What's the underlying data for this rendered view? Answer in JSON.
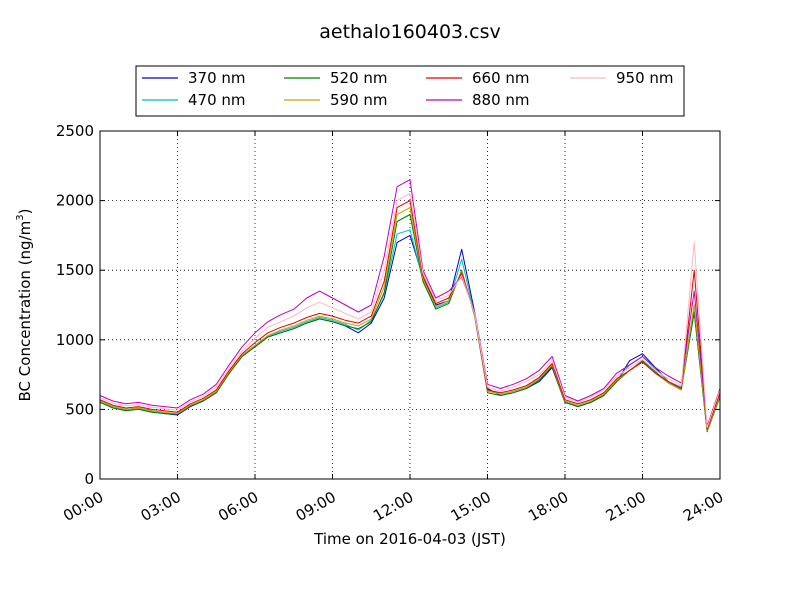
{
  "chart_data": {
    "type": "line",
    "title": "aethalo160403.csv",
    "xlabel": "Time on 2016-04-03 (JST)",
    "ylabel": "BC Concentration (ng/m",
    "ylabel_sup": "3",
    "ylabel_end": ")",
    "xlim": [
      "00:00",
      "24:00"
    ],
    "ylim": [
      0,
      2500
    ],
    "x_ticks": [
      "00:00",
      "03:00",
      "06:00",
      "09:00",
      "12:00",
      "15:00",
      "18:00",
      "21:00",
      "24:00"
    ],
    "y_ticks": [
      0,
      500,
      1000,
      1500,
      2000,
      2500
    ],
    "grid": true,
    "legend_position": "top",
    "x_hours": [
      0.0,
      0.5,
      1.0,
      1.5,
      2.0,
      2.5,
      3.0,
      3.5,
      4.0,
      4.5,
      5.0,
      5.5,
      6.0,
      6.5,
      7.0,
      7.5,
      8.0,
      8.5,
      9.0,
      9.5,
      10.0,
      10.5,
      11.0,
      11.5,
      12.0,
      12.5,
      13.0,
      13.5,
      14.0,
      14.5,
      15.0,
      15.5,
      16.0,
      16.5,
      17.0,
      17.5,
      18.0,
      18.5,
      19.0,
      19.5,
      20.0,
      20.5,
      21.0,
      21.5,
      22.0,
      22.5,
      23.0,
      23.5,
      24.0
    ],
    "series": [
      {
        "name": "370 nm",
        "color": "#0000cc",
        "values": [
          560,
          520,
          500,
          510,
          490,
          470,
          460,
          520,
          560,
          620,
          760,
          880,
          950,
          1020,
          1050,
          1080,
          1120,
          1150,
          1130,
          1100,
          1050,
          1120,
          1300,
          1700,
          1750,
          1450,
          1250,
          1280,
          1650,
          1200,
          650,
          600,
          620,
          650,
          700,
          800,
          550,
          520,
          550,
          600,
          700,
          850,
          900,
          800,
          700,
          650,
          1200,
          350,
          600
        ]
      },
      {
        "name": "470 nm",
        "color": "#00bfbf",
        "values": [
          555,
          515,
          495,
          505,
          485,
          475,
          470,
          530,
          565,
          625,
          770,
          890,
          960,
          1030,
          1060,
          1090,
          1130,
          1160,
          1140,
          1110,
          1070,
          1140,
          1330,
          1760,
          1790,
          1430,
          1230,
          1270,
          1580,
          1180,
          640,
          610,
          630,
          660,
          720,
          820,
          560,
          530,
          560,
          610,
          710,
          820,
          880,
          790,
          700,
          660,
          1250,
          360,
          610
        ]
      },
      {
        "name": "520 nm",
        "color": "#007f00",
        "values": [
          550,
          510,
          490,
          500,
          480,
          470,
          465,
          525,
          560,
          620,
          760,
          880,
          950,
          1020,
          1050,
          1080,
          1120,
          1150,
          1130,
          1100,
          1080,
          1130,
          1340,
          1850,
          1900,
          1420,
          1220,
          1260,
          1500,
          1170,
          620,
          600,
          620,
          650,
          710,
          810,
          550,
          520,
          550,
          600,
          700,
          780,
          850,
          770,
          690,
          640,
          1200,
          340,
          590
        ]
      },
      {
        "name": "590 nm",
        "color": "#cca300",
        "values": [
          560,
          520,
          500,
          510,
          490,
          480,
          470,
          530,
          570,
          630,
          770,
          890,
          960,
          1030,
          1070,
          1100,
          1140,
          1170,
          1150,
          1120,
          1100,
          1150,
          1380,
          1900,
          1950,
          1440,
          1240,
          1280,
          1490,
          1180,
          630,
          610,
          630,
          660,
          720,
          820,
          560,
          530,
          560,
          610,
          710,
          780,
          840,
          760,
          690,
          640,
          1250,
          350,
          600
        ]
      },
      {
        "name": "660 nm",
        "color": "#e60000",
        "values": [
          570,
          530,
          510,
          520,
          500,
          490,
          480,
          540,
          580,
          640,
          780,
          900,
          980,
          1050,
          1090,
          1120,
          1160,
          1190,
          1170,
          1140,
          1120,
          1170,
          1420,
          1950,
          2000,
          1460,
          1260,
          1300,
          1480,
          1190,
          640,
          620,
          640,
          670,
          730,
          830,
          570,
          540,
          570,
          620,
          720,
          780,
          840,
          760,
          700,
          650,
          1500,
          360,
          620
        ]
      },
      {
        "name": "880 nm",
        "color": "#bf00bf",
        "values": [
          600,
          560,
          540,
          550,
          530,
          520,
          510,
          570,
          610,
          680,
          820,
          950,
          1050,
          1130,
          1180,
          1220,
          1300,
          1350,
          1300,
          1250,
          1200,
          1250,
          1600,
          2100,
          2150,
          1500,
          1300,
          1350,
          1450,
          1200,
          680,
          650,
          680,
          720,
          780,
          880,
          600,
          560,
          600,
          650,
          760,
          820,
          880,
          800,
          740,
          690,
          1350,
          380,
          650
        ]
      },
      {
        "name": "950 nm",
        "color": "#ffb6c1",
        "values": [
          585,
          545,
          525,
          535,
          515,
          505,
          495,
          555,
          595,
          660,
          800,
          920,
          1010,
          1090,
          1130,
          1170,
          1230,
          1270,
          1230,
          1190,
          1150,
          1200,
          1500,
          2000,
          2050,
          1480,
          1280,
          1320,
          1460,
          1190,
          660,
          630,
          660,
          700,
          750,
          850,
          590,
          550,
          590,
          640,
          740,
          800,
          860,
          780,
          720,
          670,
          1700,
          370,
          640
        ]
      }
    ]
  }
}
